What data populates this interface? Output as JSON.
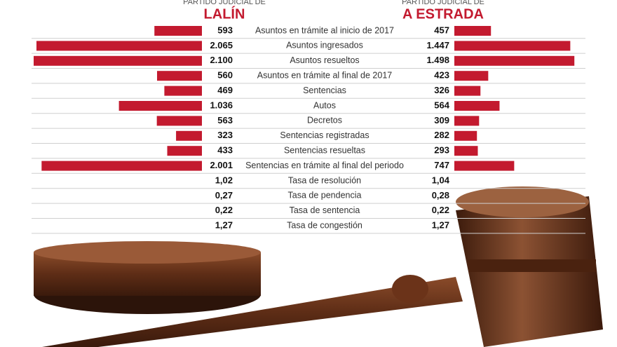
{
  "chart_data": {
    "type": "butterfly",
    "group_label": "PARTIDO JUDICIAL DE",
    "categories": [
      "Asuntos en trámite al inicio de 2017",
      "Asuntos ingresados",
      "Asuntos resueltos",
      "Asuntos en trámite al final de 2017",
      "Sentencias",
      "Autos",
      "Decretos",
      "Sentencias registradas",
      "Sentencias resueltas",
      "Sentencias en trámite al final del periodo"
    ],
    "series": [
      {
        "name": "LALÍN",
        "color": "#c31a2f",
        "side": "left",
        "values": [
          593,
          2065,
          2100,
          560,
          469,
          1036,
          563,
          323,
          433,
          2001
        ],
        "value_labels": [
          "593",
          "2.065",
          "2.100",
          "560",
          "469",
          "1.036",
          "563",
          "323",
          "433",
          "2.001"
        ]
      },
      {
        "name": "A ESTRADA",
        "color": "#c31a2f",
        "side": "right",
        "values": [
          457,
          1447,
          1498,
          423,
          326,
          564,
          309,
          282,
          293,
          747
        ],
        "value_labels": [
          "457",
          "1.447",
          "1.498",
          "423",
          "326",
          "564",
          "309",
          "282",
          "293",
          "747"
        ]
      }
    ]
  },
  "rates": {
    "rows": [
      [
        "Tasa de resolución",
        "1,02",
        "1,04"
      ],
      [
        "Tasa de pendencia",
        "0,27",
        "0,28"
      ],
      [
        "Tasa de sentencia",
        "0,22",
        "0,22"
      ],
      [
        "Tasa de congestión",
        "1,27",
        "1,27"
      ]
    ]
  }
}
